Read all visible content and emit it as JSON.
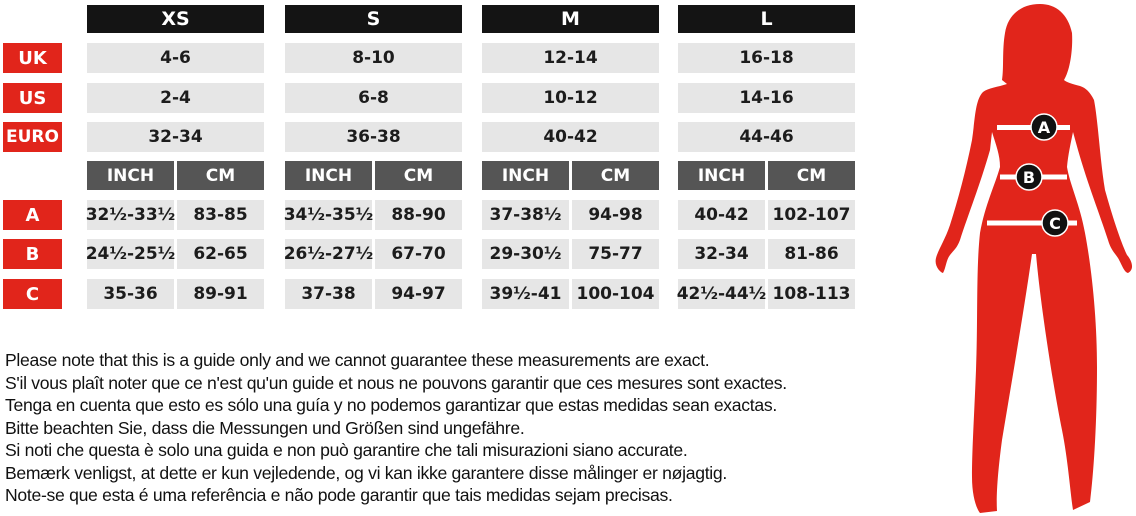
{
  "colors": {
    "accent_red": "#e1251b",
    "header_black": "#141414",
    "subheader_gray": "#555555",
    "cell_gray": "#e6e6e6"
  },
  "sizes": [
    "XS",
    "S",
    "M",
    "L"
  ],
  "row_labels": {
    "uk": "UK",
    "us": "US",
    "euro": "EURO",
    "a": "A",
    "b": "B",
    "c": "C"
  },
  "unit_labels": {
    "inch": "INCH",
    "cm": "CM"
  },
  "uk": [
    "4-6",
    "8-10",
    "12-14",
    "16-18"
  ],
  "us": [
    "2-4",
    "6-8",
    "10-12",
    "14-16"
  ],
  "euro": [
    "32-34",
    "36-38",
    "40-42",
    "44-46"
  ],
  "a": [
    [
      "32½-33½",
      "83-85"
    ],
    [
      "34½-35½",
      "88-90"
    ],
    [
      "37-38½",
      "94-98"
    ],
    [
      "40-42",
      "102-107"
    ]
  ],
  "b": [
    [
      "24½-25½",
      "62-65"
    ],
    [
      "26½-27½",
      "67-70"
    ],
    [
      "29-30½",
      "75-77"
    ],
    [
      "32-34",
      "81-86"
    ]
  ],
  "c": [
    [
      "35-36",
      "89-91"
    ],
    [
      "37-38",
      "94-97"
    ],
    [
      "39½-41",
      "100-104"
    ],
    [
      "42½-44½",
      "108-113"
    ]
  ],
  "notes": [
    "Please note that this is a guide only and we cannot guarantee these measurements are exact.",
    "S'il vous plaît noter que ce n'est qu'un guide et nous ne pouvons garantir que ces mesures sont exactes.",
    "Tenga en cuenta que esto es sólo una guía y no podemos garantizar que estas medidas sean exactas.",
    "Bitte beachten Sie, dass die Messungen und Größen sind ungefähre.",
    "Si noti che questa è solo una guida e non può garantire che tali misurazioni siano accurate.",
    "Bemærk venligst, at dette er kun vejledende, og vi kan ikke garantere disse målinger er nøjagtig.",
    "Note-se que esta é uma referência e não pode garantir que tais medidas sejam precisas."
  ],
  "figure": {
    "icon": "female-silhouette-icon",
    "markers": [
      "A",
      "B",
      "C"
    ]
  }
}
